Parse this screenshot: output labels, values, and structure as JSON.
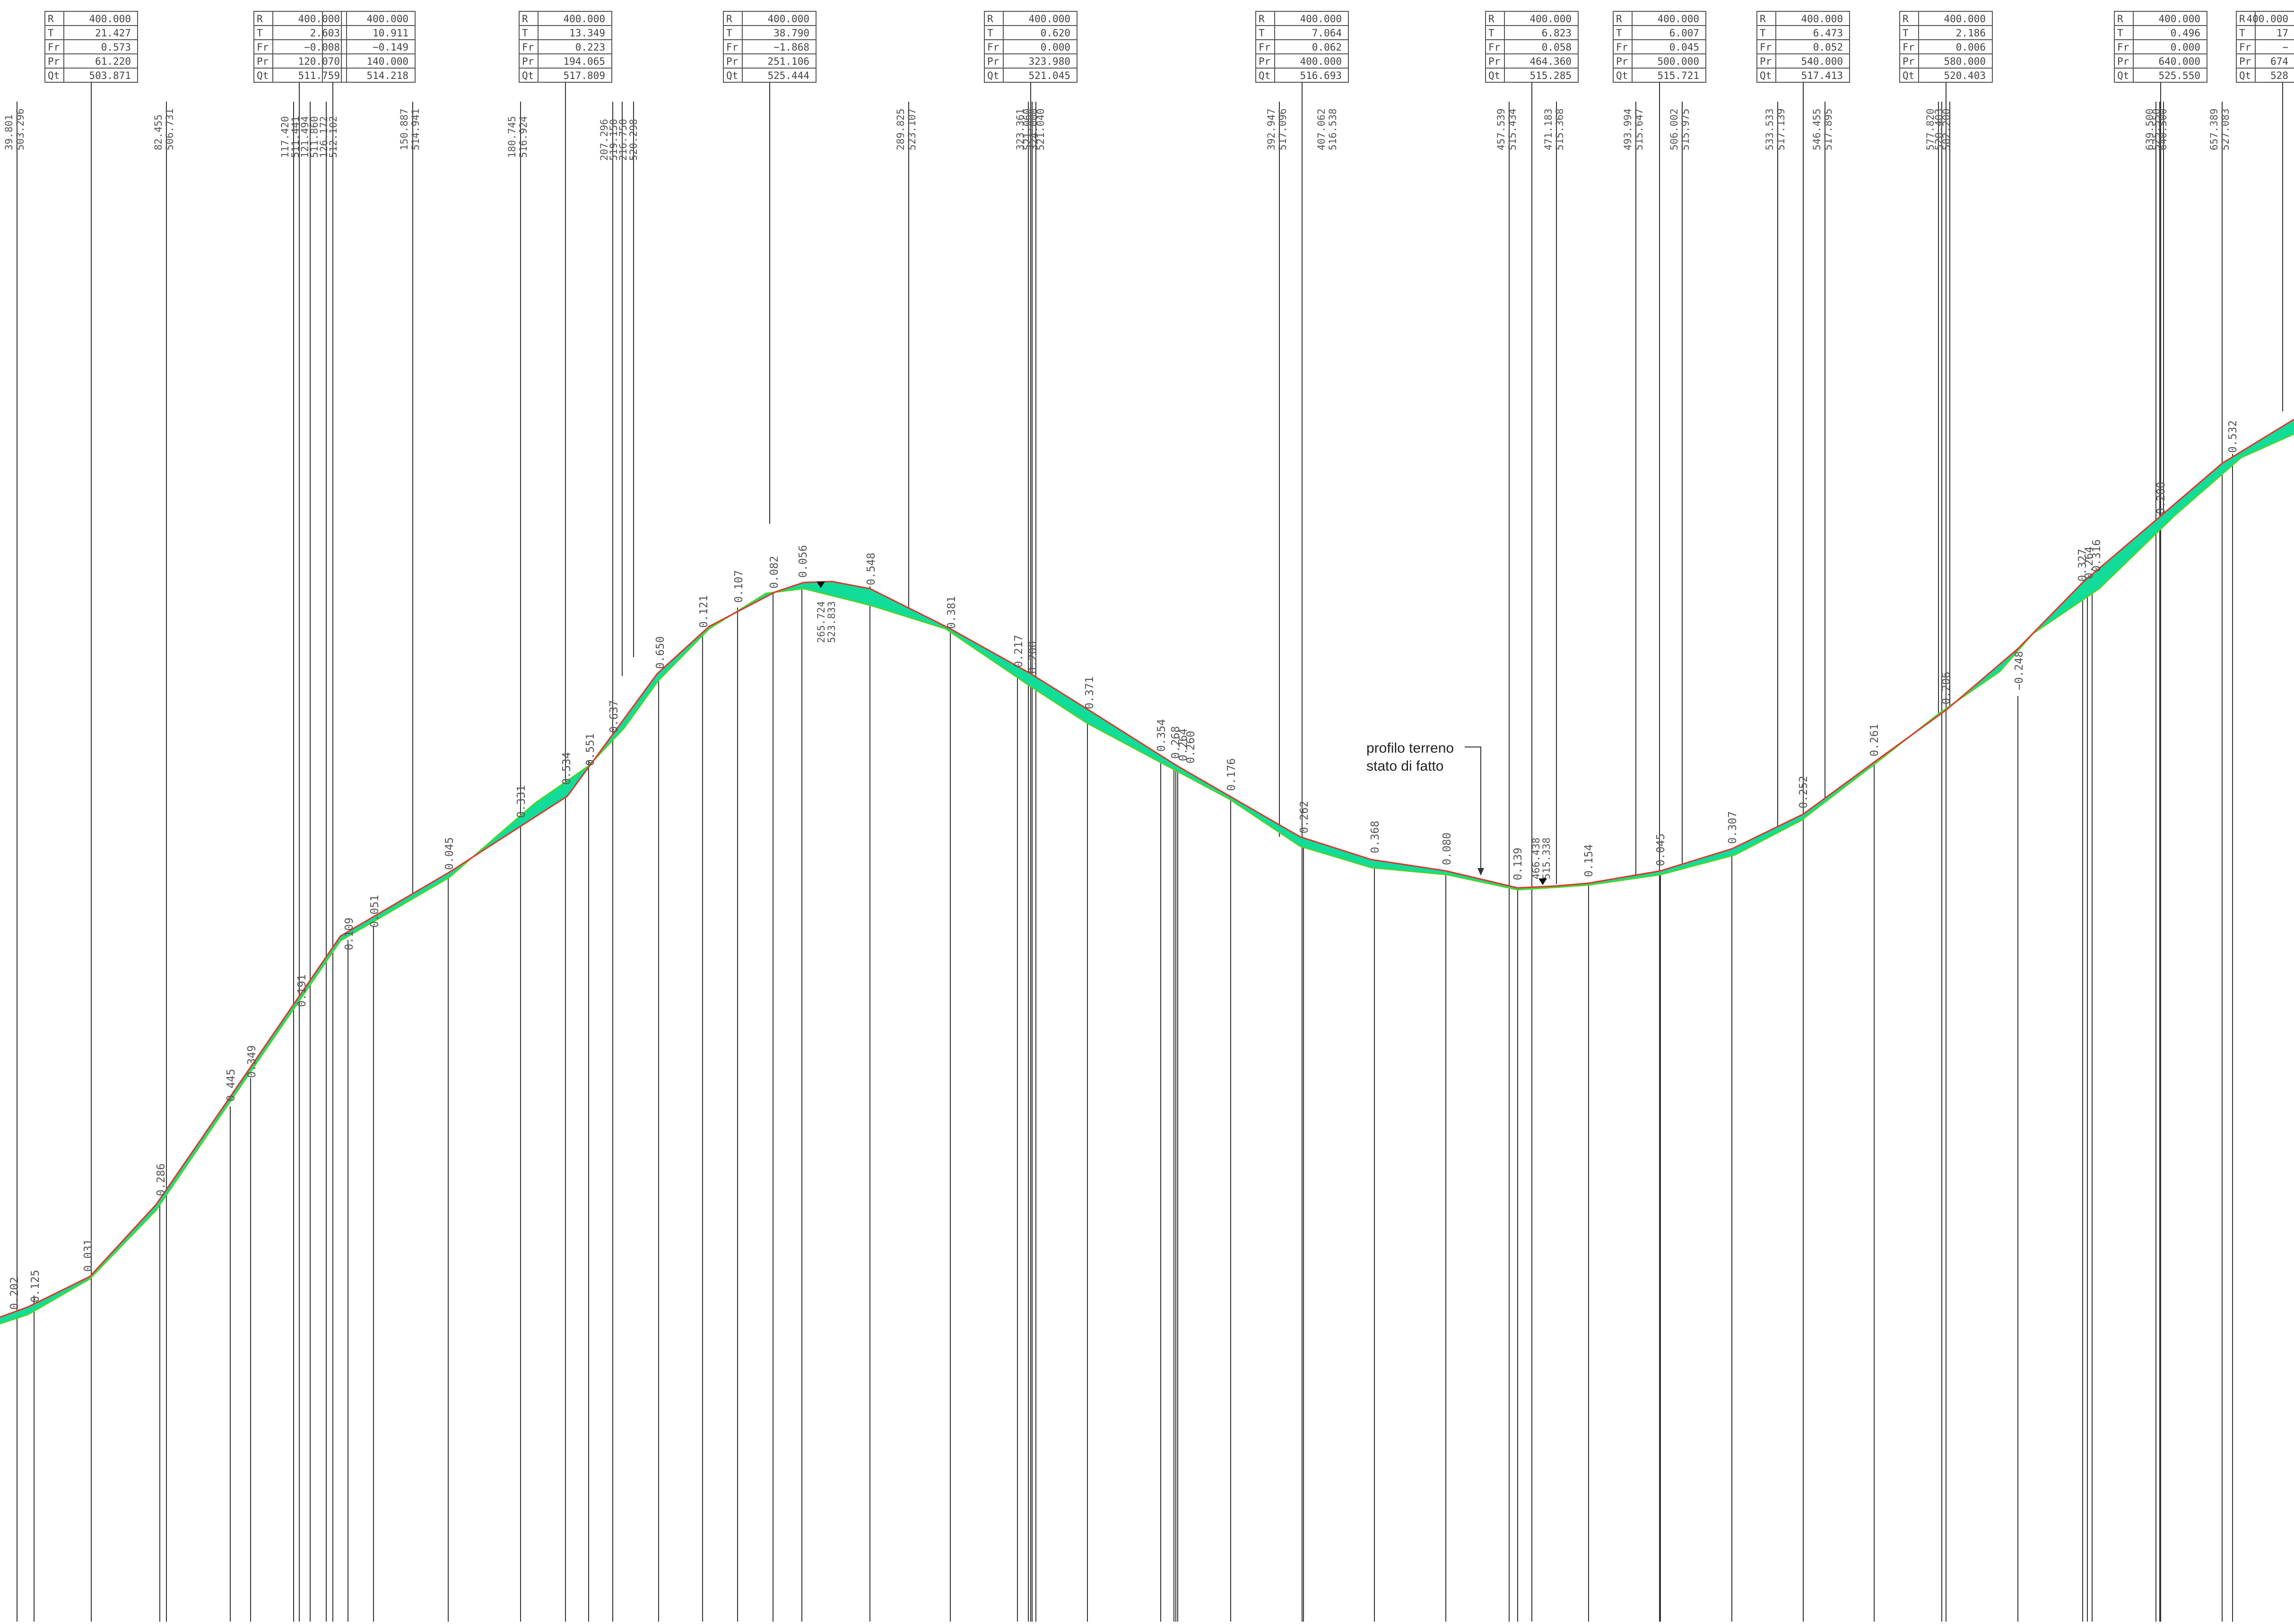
{
  "colors": {
    "fill": "#12dc9a",
    "project_line": "#e0342c",
    "terrain_line": "#4ad62a",
    "line": "#222222",
    "thin": "#555555"
  },
  "vertical_curves": [
    {
      "R": "400.000",
      "T": "21.427",
      "Fr": "0.573",
      "Pr": "61.220",
      "Qt": "503.871"
    },
    {
      "R": "400.000",
      "T": "2.603",
      "Fr": "−0.008",
      "Pr": "120.070",
      "Qt": "511.759"
    },
    {
      "R": "400.000",
      "T": "10.911",
      "Fr": "−0.149",
      "Pr": "140.000",
      "Qt": "514.218"
    },
    {
      "R": "400.000",
      "T": "13.349",
      "Fr": "0.223",
      "Pr": "194.065",
      "Qt": "517.809"
    },
    {
      "R": "400.000",
      "T": "38.790",
      "Fr": "−1.868",
      "Pr": "251.106",
      "Qt": "525.444"
    },
    {
      "R": "400.000",
      "T": "0.620",
      "Fr": "0.000",
      "Pr": "323.980",
      "Qt": "521.045"
    },
    {
      "R": "400.000",
      "T": "7.064",
      "Fr": "0.062",
      "Pr": "400.000",
      "Qt": "516.693"
    },
    {
      "R": "400.000",
      "T": "6.823",
      "Fr": "0.058",
      "Pr": "464.360",
      "Qt": "515.285"
    },
    {
      "R": "400.000",
      "T": "6.007",
      "Fr": "0.045",
      "Pr": "500.000",
      "Qt": "515.721"
    },
    {
      "R": "400.000",
      "T": "6.473",
      "Fr": "0.052",
      "Pr": "540.000",
      "Qt": "517.413"
    },
    {
      "R": "400.000",
      "T": "2.186",
      "Fr": "0.006",
      "Pr": "580.000",
      "Qt": "520.403"
    },
    {
      "R": "400.000",
      "T": "0.496",
      "Fr": "0.000",
      "Pr": "640.000",
      "Qt": "525.550"
    },
    {
      "R": "400.000",
      "T": "17",
      "Fr": "−",
      "Pr": "674",
      "Qt": "528"
    }
  ],
  "vc_keys": [
    "R",
    "T",
    "Fr",
    "Pr",
    "Qt"
  ],
  "chainages": [
    {
      "d": "39.801",
      "q": "503.296"
    },
    {
      "d": "82.455",
      "q": "506.731"
    },
    {
      "d": "117.420",
      "q": "511.441"
    },
    {
      "d": "121.494",
      "q": "511.860"
    },
    {
      "d": "126.172",
      "q": "512.102"
    },
    {
      "d": "131.119",
      "q": "512.600"
    },
    {
      "d": "136.119",
      "q": "512.902"
    },
    {
      "d": "150.887",
      "q": "514.941"
    },
    {
      "d": "180.745",
      "q": "516.924"
    },
    {
      "d": "207.296",
      "q": "519.150"
    },
    {
      "d": "212.550",
      "q": "519.800"
    },
    {
      "d": "216.750",
      "q": "520.000"
    },
    {
      "d": "220.000",
      "q": "520.298"
    },
    {
      "d": "289.825",
      "q": "523.107"
    },
    {
      "d": "323.361",
      "q": "521.070"
    },
    {
      "d": "323.650",
      "q": "521.060"
    },
    {
      "d": "324.000",
      "q": "521.045"
    },
    {
      "d": "324.600",
      "q": "521.040"
    },
    {
      "d": "392.947",
      "q": "517.096"
    },
    {
      "d": "407.062",
      "q": "516.538"
    },
    {
      "d": "457.539",
      "q": "515.434"
    },
    {
      "d": "471.183",
      "q": "515.368"
    },
    {
      "d": "493.994",
      "q": "515.647"
    },
    {
      "d": "506.002",
      "q": "515.975"
    },
    {
      "d": "533.533",
      "q": "517.139"
    },
    {
      "d": "546.455",
      "q": "517.895"
    },
    {
      "d": "577.820",
      "q": "520.250"
    },
    {
      "d": "580.000",
      "q": "520.403"
    },
    {
      "d": "582.200",
      "q": "520.590"
    },
    {
      "d": "639.500",
      "q": "525.500"
    },
    {
      "d": "640.000",
      "q": "525.550"
    },
    {
      "d": "640.500",
      "q": "525.600"
    },
    {
      "d": "657.389",
      "q": "527.083"
    }
  ],
  "depth_labels": [
    "0.202",
    "0.125",
    "0.031",
    "0.286",
    "0.445",
    "0.349",
    "0.191",
    "0.109",
    "0.051",
    "0.045",
    "0.331",
    "0.534",
    "0.551",
    "0.637",
    "0.650",
    "0.121",
    "0.107",
    "0.082",
    "0.056",
    "0.548",
    "0.381",
    "0.217",
    "0.200",
    "0.371",
    "0.354",
    "0.268",
    "0.264",
    "0.260",
    "0.176",
    "0.262",
    "0.368",
    "0.080",
    "0.139",
    "0.154",
    "0.045",
    "0.307",
    "0.252",
    "0.261",
    "0.206",
    "−0.248",
    "0.327",
    "0.264",
    "0.316",
    "0.200",
    "0.532"
  ],
  "low_point": {
    "d": "466.438",
    "q": "515.338"
  },
  "high_point": {
    "d": "265.724",
    "q": "523.833"
  },
  "note": {
    "line1": "profilo terreno",
    "line2": "stato di fatto"
  }
}
